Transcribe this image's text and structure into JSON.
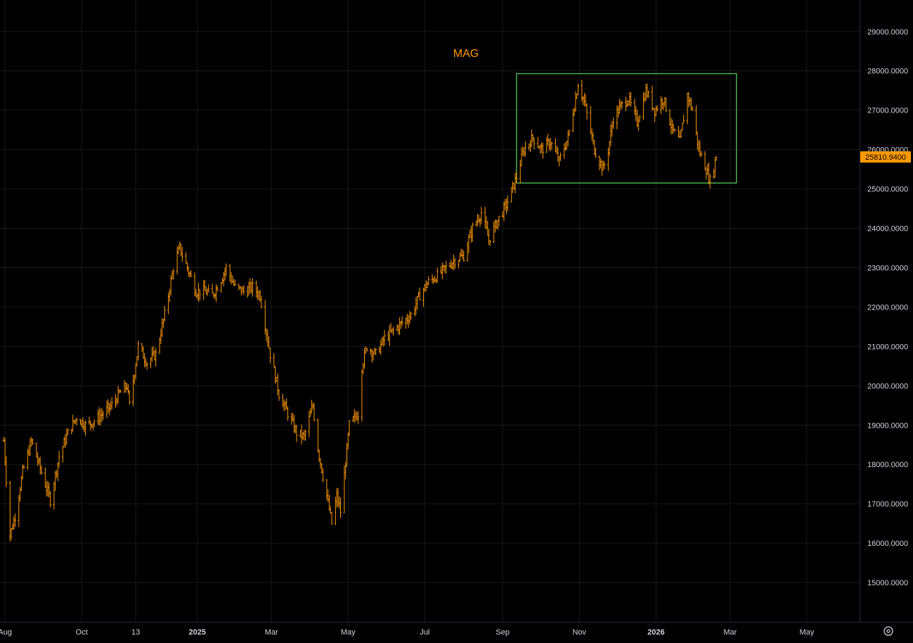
{
  "chart_data": {
    "type": "bar",
    "style": "ohlc",
    "title": "MAG",
    "colors": {
      "background": "#000000",
      "grid": "#1a1a1a",
      "bars": "#ff9900",
      "box": "#4caf50",
      "axis_text": "#d1d4dc",
      "price_tag": "#ff9900"
    },
    "grid": true,
    "y_axis": {
      "position": "right",
      "ticks": [
        "15000.0000",
        "16000.0000",
        "17000.0000",
        "18000.0000",
        "19000.0000",
        "20000.0000",
        "21000.0000",
        "22000.0000",
        "23000.0000",
        "24000.0000",
        "25000.0000",
        "26000.0000",
        "27000.0000",
        "28000.0000",
        "29000.0000"
      ],
      "ylim": [
        14000,
        29800
      ]
    },
    "x_axis": {
      "ticks": [
        {
          "label": "Aug",
          "date": "2024-08-01",
          "bold": false
        },
        {
          "label": "Oct",
          "date": "2024-10-01",
          "bold": false
        },
        {
          "label": "13",
          "date": "2024-11-13",
          "bold": false
        },
        {
          "label": "2025",
          "date": "2025-01-01",
          "bold": true
        },
        {
          "label": "Mar",
          "date": "2025-03-01",
          "bold": false
        },
        {
          "label": "May",
          "date": "2025-05-01",
          "bold": false
        },
        {
          "label": "Jul",
          "date": "2025-07-01",
          "bold": false
        },
        {
          "label": "Sep",
          "date": "2025-09-01",
          "bold": false
        },
        {
          "label": "Nov",
          "date": "2025-11-01",
          "bold": false
        },
        {
          "label": "2026",
          "date": "2026-01-01",
          "bold": true
        },
        {
          "label": "Mar",
          "date": "2026-03-01",
          "bold": false
        },
        {
          "label": "May",
          "date": "2026-05-01",
          "bold": false
        }
      ],
      "xlim": [
        "2024-07-28",
        "2026-06-12"
      ]
    },
    "last_price": {
      "label": "25810.9400",
      "value": 25810.94
    },
    "annotation_box": {
      "x0": "2025-09-12",
      "x1": "2026-03-06",
      "y0": 25150,
      "y1": 27930,
      "color": "#4caf50"
    },
    "series": [
      {
        "close_path": [
          [
            "2024-07-31",
            18600
          ],
          [
            "2024-08-05",
            16200
          ],
          [
            "2024-08-09",
            16700
          ],
          [
            "2024-08-15",
            17800
          ],
          [
            "2024-08-22",
            18600
          ],
          [
            "2024-08-30",
            17800
          ],
          [
            "2024-09-06",
            17100
          ],
          [
            "2024-09-13",
            18200
          ],
          [
            "2024-09-20",
            18800
          ],
          [
            "2024-09-27",
            19200
          ],
          [
            "2024-10-04",
            19000
          ],
          [
            "2024-10-11",
            19100
          ],
          [
            "2024-10-18",
            19300
          ],
          [
            "2024-10-25",
            19500
          ],
          [
            "2024-10-31",
            19800
          ],
          [
            "2024-11-06",
            20000
          ],
          [
            "2024-11-08",
            19500
          ],
          [
            "2024-11-15",
            21000
          ],
          [
            "2024-11-22",
            20600
          ],
          [
            "2024-11-29",
            20800
          ],
          [
            "2024-12-06",
            21800
          ],
          [
            "2024-12-13",
            23000
          ],
          [
            "2024-12-18",
            23500
          ],
          [
            "2024-12-24",
            23000
          ],
          [
            "2024-12-31",
            22400
          ],
          [
            "2025-01-07",
            22400
          ],
          [
            "2025-01-13",
            22300
          ],
          [
            "2025-01-20",
            22700
          ],
          [
            "2025-01-24",
            23000
          ],
          [
            "2025-01-31",
            22500
          ],
          [
            "2025-02-07",
            22400
          ],
          [
            "2025-02-14",
            22500
          ],
          [
            "2025-02-20",
            22300
          ],
          [
            "2025-02-28",
            20800
          ],
          [
            "2025-03-07",
            19800
          ],
          [
            "2025-03-14",
            19300
          ],
          [
            "2025-03-21",
            18800
          ],
          [
            "2025-03-27",
            18700
          ],
          [
            "2025-04-03",
            19500
          ],
          [
            "2025-04-07",
            18400
          ],
          [
            "2025-04-14",
            17200
          ],
          [
            "2025-04-18",
            16500
          ],
          [
            "2025-04-22",
            17200
          ],
          [
            "2025-04-25",
            16800
          ],
          [
            "2025-05-02",
            19000
          ],
          [
            "2025-05-09",
            19300
          ],
          [
            "2025-05-12",
            20500
          ],
          [
            "2025-05-16",
            21000
          ],
          [
            "2025-05-23",
            20800
          ],
          [
            "2025-05-30",
            21200
          ],
          [
            "2025-06-06",
            21400
          ],
          [
            "2025-06-13",
            21600
          ],
          [
            "2025-06-20",
            21800
          ],
          [
            "2025-06-27",
            22300
          ],
          [
            "2025-07-03",
            22600
          ],
          [
            "2025-07-11",
            22800
          ],
          [
            "2025-07-18",
            23000
          ],
          [
            "2025-07-25",
            23200
          ],
          [
            "2025-08-01",
            23300
          ],
          [
            "2025-08-08",
            24000
          ],
          [
            "2025-08-15",
            24400
          ],
          [
            "2025-08-21",
            23700
          ],
          [
            "2025-08-28",
            24200
          ],
          [
            "2025-09-04",
            24600
          ],
          [
            "2025-09-11",
            25200
          ],
          [
            "2025-09-18",
            26000
          ],
          [
            "2025-09-25",
            26300
          ],
          [
            "2025-10-02",
            26000
          ],
          [
            "2025-10-09",
            26200
          ],
          [
            "2025-10-16",
            25700
          ],
          [
            "2025-10-23",
            26300
          ],
          [
            "2025-10-29",
            27300
          ],
          [
            "2025-10-31",
            27700
          ],
          [
            "2025-11-05",
            27200
          ],
          [
            "2025-11-13",
            26000
          ],
          [
            "2025-11-20",
            25500
          ],
          [
            "2025-11-24",
            26000
          ],
          [
            "2025-11-28",
            26800
          ],
          [
            "2025-12-04",
            27100
          ],
          [
            "2025-12-10",
            27300
          ],
          [
            "2025-12-17",
            26700
          ],
          [
            "2025-12-24",
            27500
          ],
          [
            "2025-12-31",
            27000
          ],
          [
            "2026-01-07",
            27300
          ],
          [
            "2026-01-14",
            26500
          ],
          [
            "2026-01-20",
            26200
          ],
          [
            "2026-01-26",
            27400
          ],
          [
            "2026-01-30",
            27000
          ],
          [
            "2026-02-04",
            26000
          ],
          [
            "2026-02-10",
            25500
          ],
          [
            "2026-02-13",
            25200
          ],
          [
            "2026-02-18",
            25810.94
          ]
        ]
      }
    ]
  }
}
